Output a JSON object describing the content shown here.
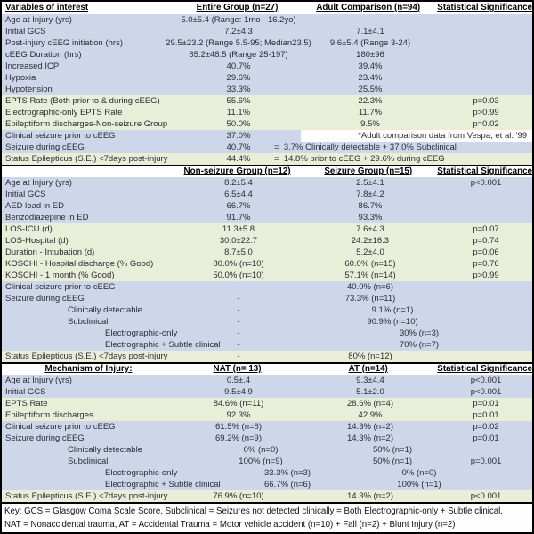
{
  "table": {
    "colors": {
      "row_blue": "#cdd7e9",
      "row_green": "#e9eed9",
      "text": "#2b2b36",
      "border": "#000000"
    },
    "sections": [
      {
        "header": {
          "label": "Variables of interest",
          "c1": "Entire Group (n=27)",
          "c2": "Adult Comparison (n=94)",
          "c3": "Statistical Significance",
          "label_align": "left"
        },
        "rows": [
          {
            "label": "Age at Injury (yrs)",
            "c1": "5.0±5.4 (Range: 1mo - 16.2yo)",
            "c2": "",
            "c3": "",
            "bg": "blue",
            "indent": 0
          },
          {
            "label": "Initial GCS",
            "c1": "7.2±4.3",
            "c2": "7.1±4.1",
            "c3": "",
            "bg": "blue",
            "indent": 0
          },
          {
            "label": "Post-injury cEEG initiation (hrs)",
            "c1": "29.5±23.2 (Range 5.5-95; Median23.5)",
            "c2": "9.6±5.4 (Range 3-24)",
            "c3": "",
            "bg": "blue",
            "indent": 0
          },
          {
            "label": "cEEG Duration (hrs)",
            "c1": "85.2±48.5 (Range 25-197)",
            "c2": "180±96",
            "c3": "",
            "bg": "blue",
            "indent": 0
          },
          {
            "label": "Increased ICP",
            "c1": "40.7%",
            "c2": "39.4%",
            "c3": "",
            "bg": "blue",
            "indent": 0
          },
          {
            "label": "Hypoxia",
            "c1": "29.6%",
            "c2": "23.4%",
            "c3": "",
            "bg": "blue",
            "indent": 0
          },
          {
            "label": "Hypotension",
            "c1": "33.3%",
            "c2": "25.5%",
            "c3": "",
            "bg": "blue",
            "indent": 0
          },
          {
            "label": "EPTS Rate (Both prior to & during cEEG)",
            "c1": "55.6%",
            "c2": "22.3%",
            "c3": "p=0.03",
            "bg": "green",
            "indent": 0
          },
          {
            "label": "Electrographic-only EPTS Rate",
            "c1": "11.1%",
            "c2": "11.7%",
            "c3": "p>0.99",
            "bg": "green",
            "indent": 0
          },
          {
            "label": "Epileptiform discharges-Non-seizure Group",
            "c1": "50.0%",
            "c2": "9.5%",
            "c3": "p=0.02",
            "bg": "green",
            "indent": 0
          },
          {
            "label": "Clinical seizure prior to cEEG",
            "c1": "37.0%",
            "note": "*Adult comparison data from Vespa, et al. '99",
            "bg": "blue",
            "indent": 0
          },
          {
            "label": "Seizure during cEEG",
            "c1": "40.7%",
            "span": "=  3.7% Clinically detectable + 37.0% Subclinical",
            "bg": "blue",
            "indent": 0
          },
          {
            "label": "Status Epilepticus (S.E.) <7days post-injury",
            "c1": "44.4%",
            "span": "=  14.8% prior to cEEG + 29.6% during cEEG",
            "bg": "green",
            "indent": 0
          }
        ]
      },
      {
        "header": {
          "label": "",
          "c1": "Non-seizure Group (n=12)",
          "c2": "Seizure Group (n=15)",
          "c3": "Statistical Significance",
          "label_align": "left"
        },
        "rows": [
          {
            "label": "Age at Injury (yrs)",
            "c1": "8.2±5.4",
            "c2": "2.5±4.1",
            "c3": "p<0.001",
            "bg": "blue",
            "indent": 0
          },
          {
            "label": "Initial GCS",
            "c1": "6.5±4.4",
            "c2": "7.8±4.2",
            "c3": "",
            "bg": "blue",
            "indent": 0
          },
          {
            "label": "AED load in ED",
            "c1": "66.7%",
            "c2": "86.7%",
            "c3": "",
            "bg": "blue",
            "indent": 0
          },
          {
            "label": "Benzodiazepine in ED",
            "c1": "91.7%",
            "c2": "93.3%",
            "c3": "",
            "bg": "blue",
            "indent": 0
          },
          {
            "label": "LOS-ICU (d)",
            "c1": "11.3±5.8",
            "c2": "7.6±4.3",
            "c3": "p=0.07",
            "bg": "green",
            "indent": 0
          },
          {
            "label": "LOS-Hospital (d)",
            "c1": "30.0±22.7",
            "c2": "24.2±16.3",
            "c3": "p=0.74",
            "bg": "green",
            "indent": 0
          },
          {
            "label": "Duration - Intubation (d)",
            "c1": "8.7±5.0",
            "c2": "5.2±4.0",
            "c3": "p=0.06",
            "bg": "green",
            "indent": 0
          },
          {
            "label": "KOSCHI - Hospital discharge (% Good)",
            "c1": "80.0% (n=10)",
            "c2": "60.0% (n=15)",
            "c3": "p=0.76",
            "bg": "green",
            "indent": 0
          },
          {
            "label": "KOSCHI - 1 month (% Good)",
            "c1": "50.0% (n=10)",
            "c2": "57.1% (n=14)",
            "c3": "p>0.99",
            "bg": "green",
            "indent": 0
          },
          {
            "label": "Clinical seizure prior to cEEG",
            "c1": "-",
            "c2": "40.0% (n=6)",
            "c3": "",
            "bg": "blue",
            "indent": 0
          },
          {
            "label": "Seizure during cEEG",
            "c1": "-",
            "c2": "73.3% (n=11)",
            "c3": "",
            "bg": "blue",
            "indent": 0
          },
          {
            "label": "Clinically detectable",
            "c1": "-",
            "c2": "9.1% (n=1)",
            "c3": "",
            "bg": "blue",
            "indent": 1
          },
          {
            "label": "Subclinical",
            "c1": "-",
            "c2": "90.9% (n=10)",
            "c3": "",
            "bg": "blue",
            "indent": 1
          },
          {
            "label": "Electrographic-only",
            "c1": "-",
            "c2": "30% (n=3)",
            "c3": "",
            "bg": "blue",
            "indent": 2
          },
          {
            "label": "Electrographic + Subtle clinical",
            "c1": "-",
            "c2": "70% (n=7)",
            "c3": "",
            "bg": "blue",
            "indent": 2
          },
          {
            "label": "Status Epilepticus (S.E.) <7days post-injury",
            "c1": "-",
            "c2": "80% (n=12)",
            "c3": "",
            "bg": "green",
            "indent": 0
          }
        ]
      },
      {
        "header": {
          "label": "Mechanism of Injury:",
          "c1": "NAT (n= 13)",
          "c2": "AT (n=14)",
          "c3": "Statistical Significance",
          "label_align": "center"
        },
        "rows": [
          {
            "label": "Age at Injury (yrs)",
            "c1": "0.5±.4",
            "c2": "9.3±4.4",
            "c3": "p<0.001",
            "bg": "blue",
            "indent": 0
          },
          {
            "label": "Initial GCS",
            "c1": "9.5±4.9",
            "c2": "5.1±2.0",
            "c3": "p<0.001",
            "bg": "blue",
            "indent": 0
          },
          {
            "label": "EPTS Rate",
            "c1": "84.6% (n=11)",
            "c2": "28.6% (n=4)",
            "c3": "p=0.01",
            "bg": "green",
            "indent": 0
          },
          {
            "label": "Epileptiform discharges",
            "c1": "92.3%",
            "c2": "42.9%",
            "c3": "p=0.01",
            "bg": "green",
            "indent": 0
          },
          {
            "label": "Clinical seizure prior to cEEG",
            "c1": "61.5% (n=8)",
            "c2": "14.3% (n=2)",
            "c3": "p=0.02",
            "bg": "blue",
            "indent": 0
          },
          {
            "label": "Seizure during cEEG",
            "c1": "69.2% (n=9)",
            "c2": "14.3% (n=2)",
            "c3": "p=0.01",
            "bg": "blue",
            "indent": 0
          },
          {
            "label": "Clinically detectable",
            "c1": "0% (n=0)",
            "c2": "50% (n=1)",
            "c3": "",
            "bg": "blue",
            "indent": 1
          },
          {
            "label": "Subclinical",
            "c1": "100% (n=9)",
            "c2": "50% (n=1)",
            "c3": "p=0.001",
            "bg": "blue",
            "indent": 1
          },
          {
            "label": "Electrographic-only",
            "c1": "33.3% (n=3)",
            "c2": "0% (n=0)",
            "c3": "",
            "bg": "blue",
            "indent": 2
          },
          {
            "label": "Electrographic + Subtle clinical",
            "c1": "66.7% (n=6)",
            "c2": "100% (n=1)",
            "c3": "",
            "bg": "blue",
            "indent": 2
          },
          {
            "label": "Status Epilepticus (S.E.) <7days post-injury",
            "c1": "76.9% (n=10)",
            "c2": "14.3% (n=2)",
            "c3": "p<0.001",
            "bg": "green",
            "indent": 0
          }
        ]
      }
    ],
    "footer": {
      "line1": "Key: GCS = Glasgow Coma Scale Score, Subclinical = Seizures not detected clinically = Both Electrographic-only + Subtle clinical,",
      "line2": "NAT = Nonaccidental trauma, AT = Accidental Trauma = Motor vehicle accident (n=10) + Fall (n=2) + Blunt Injury (n=2)"
    }
  }
}
